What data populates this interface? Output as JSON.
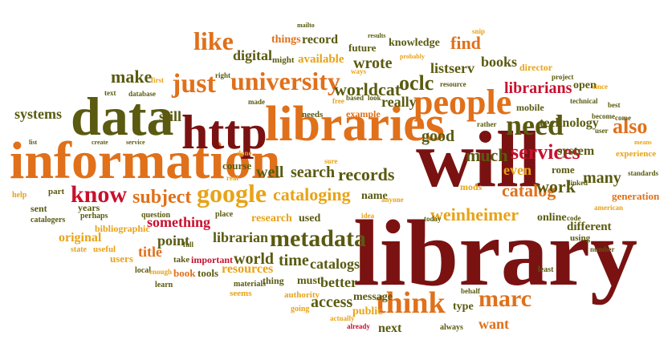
{
  "colors": {
    "dark_red": "#7a1212",
    "red": "#c8102e",
    "orange": "#e0701a",
    "gold": "#e8a317",
    "olive": "#5a5a10",
    "green": "#4a6a1a"
  },
  "words": [
    {
      "text": "library",
      "color": "dark_red"
    },
    {
      "text": "will",
      "color": "dark_red"
    },
    {
      "text": "information",
      "color": "orange"
    },
    {
      "text": "data",
      "color": "olive"
    },
    {
      "text": "libraries",
      "color": "orange"
    },
    {
      "text": "http",
      "color": "dark_red"
    },
    {
      "text": "people",
      "color": "orange"
    },
    {
      "text": "need",
      "color": "olive"
    },
    {
      "text": "university",
      "color": "orange"
    },
    {
      "text": "google",
      "color": "gold"
    },
    {
      "text": "think",
      "color": "orange"
    },
    {
      "text": "metadata",
      "color": "olive"
    },
    {
      "text": "services",
      "color": "red"
    },
    {
      "text": "know",
      "color": "red"
    },
    {
      "text": "just",
      "color": "orange"
    },
    {
      "text": "like",
      "color": "orange"
    },
    {
      "text": "cataloging",
      "color": "gold"
    },
    {
      "text": "marc",
      "color": "orange"
    },
    {
      "text": "subject",
      "color": "orange"
    },
    {
      "text": "make",
      "color": "olive"
    },
    {
      "text": "oclc",
      "color": "olive"
    },
    {
      "text": "worldcat",
      "color": "olive"
    },
    {
      "text": "records",
      "color": "olive"
    },
    {
      "text": "search",
      "color": "olive"
    },
    {
      "text": "catalog",
      "color": "orange"
    },
    {
      "text": "weinheimer",
      "color": "gold"
    },
    {
      "text": "much",
      "color": "olive"
    },
    {
      "text": "good",
      "color": "olive"
    },
    {
      "text": "also",
      "color": "orange"
    },
    {
      "text": "librarians",
      "color": "red"
    },
    {
      "text": "technology",
      "color": "olive"
    },
    {
      "text": "work",
      "color": "olive"
    },
    {
      "text": "many",
      "color": "olive"
    },
    {
      "text": "even",
      "color": "gold"
    },
    {
      "text": "systems",
      "color": "olive"
    },
    {
      "text": "still",
      "color": "olive"
    },
    {
      "text": "wrote",
      "color": "olive"
    },
    {
      "text": "really",
      "color": "olive"
    },
    {
      "text": "well",
      "color": "olive"
    },
    {
      "text": "time",
      "color": "olive"
    },
    {
      "text": "catalogs",
      "color": "olive"
    },
    {
      "text": "world",
      "color": "olive"
    },
    {
      "text": "librarian",
      "color": "olive"
    },
    {
      "text": "something",
      "color": "red"
    },
    {
      "text": "access",
      "color": "olive"
    },
    {
      "text": "want",
      "color": "orange"
    },
    {
      "text": "better",
      "color": "olive"
    },
    {
      "text": "message",
      "color": "olive"
    },
    {
      "text": "next",
      "color": "olive"
    },
    {
      "text": "type",
      "color": "olive"
    },
    {
      "text": "point",
      "color": "olive"
    },
    {
      "text": "title",
      "color": "orange"
    },
    {
      "text": "resources",
      "color": "gold"
    },
    {
      "text": "original",
      "color": "gold"
    },
    {
      "text": "digital",
      "color": "olive"
    },
    {
      "text": "books",
      "color": "olive"
    },
    {
      "text": "find",
      "color": "orange"
    },
    {
      "text": "things",
      "color": "orange"
    },
    {
      "text": "record",
      "color": "olive"
    },
    {
      "text": "available",
      "color": "gold"
    },
    {
      "text": "future",
      "color": "olive"
    },
    {
      "text": "knowledge",
      "color": "olive"
    },
    {
      "text": "listserv",
      "color": "olive"
    },
    {
      "text": "course",
      "color": "olive"
    },
    {
      "text": "name",
      "color": "olive"
    },
    {
      "text": "used",
      "color": "olive"
    },
    {
      "text": "research",
      "color": "gold"
    },
    {
      "text": "different",
      "color": "olive"
    },
    {
      "text": "system",
      "color": "olive"
    },
    {
      "text": "online",
      "color": "olive"
    },
    {
      "text": "rome",
      "color": "olive"
    },
    {
      "text": "generation",
      "color": "orange"
    },
    {
      "text": "open",
      "color": "olive"
    },
    {
      "text": "mobile",
      "color": "olive"
    },
    {
      "text": "director",
      "color": "gold"
    },
    {
      "text": "experience",
      "color": "gold"
    },
    {
      "text": "users",
      "color": "gold"
    },
    {
      "text": "book",
      "color": "orange"
    },
    {
      "text": "tools",
      "color": "olive"
    },
    {
      "text": "public",
      "color": "gold"
    },
    {
      "text": "must",
      "color": "olive"
    },
    {
      "text": "years",
      "color": "olive"
    },
    {
      "text": "sent",
      "color": "olive"
    },
    {
      "text": "bibliographic",
      "color": "gold"
    },
    {
      "text": "important",
      "color": "red"
    },
    {
      "text": "thing",
      "color": "olive"
    },
    {
      "text": "might",
      "color": "olive"
    },
    {
      "text": "needs",
      "color": "olive"
    },
    {
      "text": "example",
      "color": "orange"
    },
    {
      "text": "mods",
      "color": "gold"
    },
    {
      "text": "catalogers",
      "color": "olive"
    },
    {
      "text": "place",
      "color": "olive"
    },
    {
      "text": "perhaps",
      "color": "olive"
    },
    {
      "text": "help",
      "color": "gold"
    },
    {
      "text": "part",
      "color": "olive"
    },
    {
      "text": "useful",
      "color": "gold"
    },
    {
      "text": "question",
      "color": "olive"
    },
    {
      "text": "state",
      "color": "gold"
    },
    {
      "text": "local",
      "color": "olive"
    },
    {
      "text": "learn",
      "color": "olive"
    },
    {
      "text": "take",
      "color": "olive"
    },
    {
      "text": "full",
      "color": "olive"
    },
    {
      "text": "enough",
      "color": "gold"
    },
    {
      "text": "materials",
      "color": "olive"
    },
    {
      "text": "seems",
      "color": "gold"
    },
    {
      "text": "going",
      "color": "gold"
    },
    {
      "text": "authority",
      "color": "gold"
    },
    {
      "text": "actually",
      "color": "gold"
    },
    {
      "text": "already",
      "color": "red"
    },
    {
      "text": "always",
      "color": "olive"
    },
    {
      "text": "behalf",
      "color": "olive"
    },
    {
      "text": "least",
      "color": "olive"
    },
    {
      "text": "number",
      "color": "olive"
    },
    {
      "text": "using",
      "color": "olive"
    },
    {
      "text": "american",
      "color": "gold"
    },
    {
      "text": "standards",
      "color": "olive"
    },
    {
      "text": "linked",
      "color": "olive"
    },
    {
      "text": "code",
      "color": "olive"
    },
    {
      "text": "today",
      "color": "olive"
    },
    {
      "text": "idea",
      "color": "gold"
    },
    {
      "text": "anyone",
      "color": "gold"
    },
    {
      "text": "sure",
      "color": "gold"
    },
    {
      "text": "done",
      "color": "gold"
    },
    {
      "text": "real",
      "color": "gold"
    },
    {
      "text": "made",
      "color": "olive"
    },
    {
      "text": "free",
      "color": "gold"
    },
    {
      "text": "based",
      "color": "olive"
    },
    {
      "text": "look",
      "color": "olive"
    },
    {
      "text": "resource",
      "color": "olive"
    },
    {
      "text": "probably",
      "color": "gold"
    },
    {
      "text": "ways",
      "color": "gold"
    },
    {
      "text": "results",
      "color": "olive"
    },
    {
      "text": "mailto",
      "color": "olive"
    },
    {
      "text": "snip",
      "color": "gold"
    },
    {
      "text": "project",
      "color": "olive"
    },
    {
      "text": "since",
      "color": "gold"
    },
    {
      "text": "come",
      "color": "olive"
    },
    {
      "text": "best",
      "color": "olive"
    },
    {
      "text": "user",
      "color": "olive"
    },
    {
      "text": "become",
      "color": "olive"
    },
    {
      "text": "technical",
      "color": "olive"
    },
    {
      "text": "rather",
      "color": "olive"
    },
    {
      "text": "means",
      "color": "gold"
    },
    {
      "text": "first",
      "color": "gold"
    },
    {
      "text": "right",
      "color": "olive"
    },
    {
      "text": "text",
      "color": "olive"
    },
    {
      "text": "database",
      "color": "olive"
    },
    {
      "text": "create",
      "color": "olive"
    },
    {
      "text": "service",
      "color": "olive"
    },
    {
      "text": "list",
      "color": "olive"
    }
  ]
}
